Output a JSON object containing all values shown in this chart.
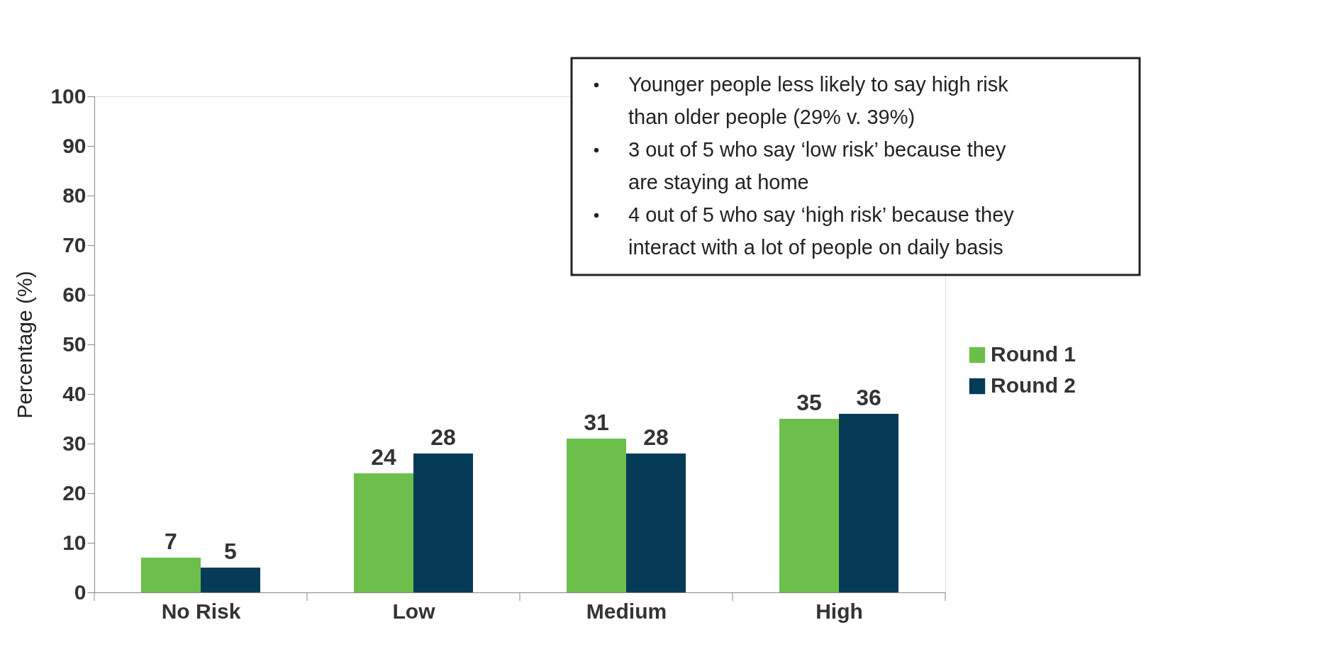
{
  "chart_data": {
    "type": "bar",
    "ylabel": "Percentage (%)",
    "categories": [
      "No Risk",
      "Low",
      "Medium",
      "High"
    ],
    "series": [
      {
        "name": "Round 1",
        "color": "#6cbf4a",
        "values": [
          7,
          24,
          31,
          35
        ]
      },
      {
        "name": "Round 2",
        "color": "#053b57",
        "values": [
          5,
          28,
          28,
          36
        ]
      }
    ],
    "ylim": [
      0,
      100
    ],
    "yticks": [
      0,
      10,
      20,
      30,
      40,
      50,
      60,
      70,
      80,
      90,
      100
    ],
    "grid": false,
    "legend": "right",
    "data_labels": true,
    "annotations": [
      "Younger people less likely to say high risk than older people (29% v. 39%)",
      "3 out of 5 who say ‘low risk’ because they are staying at home",
      "4 out of 5 who say ‘high risk’ because they interact with a lot of people on daily basis"
    ]
  }
}
